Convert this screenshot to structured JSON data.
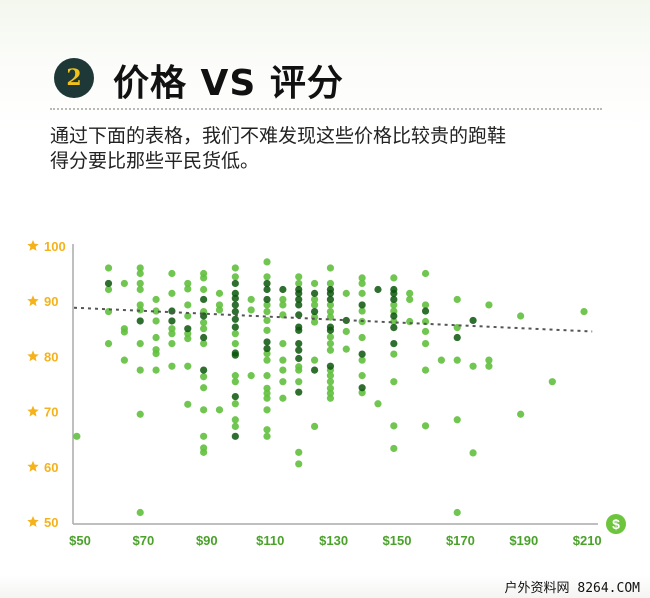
{
  "header": {
    "badge_number": "2",
    "title": "价格 VS 评分",
    "description_line1": "通过下面的表格，我们不难发现这些价格比较贵的跑鞋",
    "description_line2": "得分要比那些平民货低。"
  },
  "watermark": "户外资料网 8264.COM",
  "colors": {
    "light": "#62c03e",
    "mid": "#2f9a20",
    "dark": "#0b560a",
    "axis_label_y": "#f5b21b",
    "axis_label_x": "#4aa22a",
    "trend": "#555555"
  },
  "chart_data": {
    "type": "scatter",
    "title": "价格 VS 评分",
    "xlabel": "$",
    "ylabel": "★",
    "xlim": [
      48,
      212
    ],
    "ylim": [
      50,
      100
    ],
    "x_ticks": [
      "$50",
      "$70",
      "$90",
      "$110",
      "$130",
      "$150",
      "$170",
      "$190",
      "$210"
    ],
    "x_tick_values": [
      50,
      70,
      90,
      110,
      130,
      150,
      170,
      190,
      210
    ],
    "y_ticks": [
      "100",
      "90",
      "80",
      "70",
      "60",
      "50"
    ],
    "y_tick_values": [
      100,
      90,
      80,
      70,
      60,
      50
    ],
    "trendline": {
      "from": [
        50,
        89.0
      ],
      "to": [
        210,
        84.7
      ],
      "style": "dotted"
    },
    "columns": [
      {
        "price": 49,
        "light": [
          65.7
        ],
        "dark": []
      },
      {
        "price": 59,
        "light": [
          96.2,
          92.3,
          88.3,
          82.5
        ],
        "dark": [
          93.4
        ]
      },
      {
        "price": 64,
        "light": [
          93.4,
          85.2,
          84.6,
          79.5
        ],
        "dark": []
      },
      {
        "price": 69,
        "light": [
          96.2,
          95.2,
          93.4,
          92.3,
          89.5,
          88.6,
          82.5,
          77.7,
          69.7,
          51.9
        ],
        "dark": [
          86.6
        ]
      },
      {
        "price": 74,
        "light": [
          90.5,
          88.4,
          86.6,
          83.6,
          81.4,
          80.7,
          77.7
        ],
        "dark": []
      },
      {
        "price": 79,
        "light": [
          95.2,
          91.6,
          85.2,
          84.3,
          82.5,
          78.4
        ],
        "dark": [
          88.4,
          86.6
        ]
      },
      {
        "price": 84,
        "light": [
          93.4,
          92.4,
          89.5,
          87.5,
          84.3,
          83.4,
          78.4,
          71.5
        ],
        "dark": [
          85.2
        ]
      },
      {
        "price": 89,
        "light": [
          95.2,
          94.4,
          92.3,
          88.3,
          86.3,
          85.2,
          82.5,
          76.5,
          74.5,
          70.5,
          65.7,
          63.6,
          62.8
        ],
        "dark": [
          90.5,
          87.5,
          83.6,
          77.7
        ]
      },
      {
        "price": 94,
        "light": [
          91.6,
          89.5,
          88.6,
          70.5
        ],
        "dark": []
      },
      {
        "price": 99,
        "light": [
          96.2,
          94.6,
          84.3,
          82.5,
          76.7,
          75.6,
          71.6,
          68.7,
          67.5
        ],
        "dark": [
          93.4,
          91.6,
          90.7,
          89.5,
          88.3,
          86.9,
          85.5,
          80.8,
          80.4,
          72.9,
          65.7
        ]
      },
      {
        "price": 104,
        "light": [
          90.5,
          88.6,
          76.7
        ],
        "dark": []
      },
      {
        "price": 109,
        "light": [
          97.3,
          94.6,
          89.5,
          88.3,
          86.7,
          84.9,
          80.7,
          79.5,
          76.7,
          74.4,
          73.5,
          72.6,
          70.5,
          66.9,
          65.7
        ],
        "dark": [
          93.4,
          92.3,
          90.5,
          82.8,
          81.6
        ]
      },
      {
        "price": 114,
        "light": [
          90.5,
          89.5,
          87.7,
          82.5,
          79.5,
          77.7,
          75.6,
          72.6
        ],
        "dark": [
          92.3
        ]
      },
      {
        "price": 119,
        "light": [
          94.6,
          93.4,
          78.3,
          77.7,
          75.6,
          62.8,
          60.7
        ],
        "dark": [
          92.3,
          91.6,
          90.5,
          89.5,
          87.7,
          85.5,
          84.9,
          82.5,
          81.3,
          79.8,
          73.7
        ]
      },
      {
        "price": 124,
        "light": [
          93.4,
          90.5,
          89.5,
          87.3,
          86.4,
          79.5,
          67.5
        ],
        "dark": [
          91.6,
          88.3,
          77.7
        ]
      },
      {
        "price": 129,
        "light": [
          96.2,
          93.4,
          89.5,
          88.3,
          87.3,
          83.7,
          82.5,
          81.3,
          77.7,
          76.7,
          75.6,
          74.4,
          73.5,
          72.6
        ],
        "dark": [
          92.3,
          91.6,
          90.5,
          85.5,
          84.9,
          78.4
        ]
      },
      {
        "price": 134,
        "light": [
          91.6,
          84.7,
          81.5
        ],
        "dark": [
          86.7
        ]
      },
      {
        "price": 139,
        "light": [
          94.4,
          93.4,
          91.6,
          88.4,
          86.5,
          83.6,
          79.5,
          76.7,
          73.6
        ],
        "dark": [
          89.5,
          80.6,
          74.5
        ]
      },
      {
        "price": 144,
        "light": [
          71.6
        ],
        "dark": [
          92.3
        ]
      },
      {
        "price": 149,
        "light": [
          94.4,
          89.5,
          88.4,
          86.5,
          80.6,
          75.6,
          67.6,
          63.5
        ],
        "dark": [
          92.3,
          91.6,
          90.5,
          87.5,
          85.4,
          82.5
        ]
      },
      {
        "price": 154,
        "light": [
          91.6,
          90.5,
          86.5
        ],
        "dark": []
      },
      {
        "price": 159,
        "light": [
          95.2,
          89.5,
          86.5,
          84.7,
          82.5,
          77.7,
          67.6
        ],
        "dark": [
          88.4
        ]
      },
      {
        "price": 164,
        "light": [
          79.5
        ],
        "dark": []
      },
      {
        "price": 169,
        "light": [
          90.5,
          85.4,
          79.5,
          68.7,
          51.9
        ],
        "dark": [
          83.6
        ]
      },
      {
        "price": 174,
        "light": [
          78.4,
          62.7
        ],
        "dark": [
          86.7
        ]
      },
      {
        "price": 179,
        "light": [
          89.5,
          79.5,
          78.4
        ],
        "dark": []
      },
      {
        "price": 189,
        "light": [
          87.5,
          69.7
        ],
        "dark": []
      },
      {
        "price": 199,
        "light": [
          75.6
        ],
        "dark": []
      },
      {
        "price": 209,
        "light": [
          88.3
        ],
        "dark": []
      }
    ]
  }
}
